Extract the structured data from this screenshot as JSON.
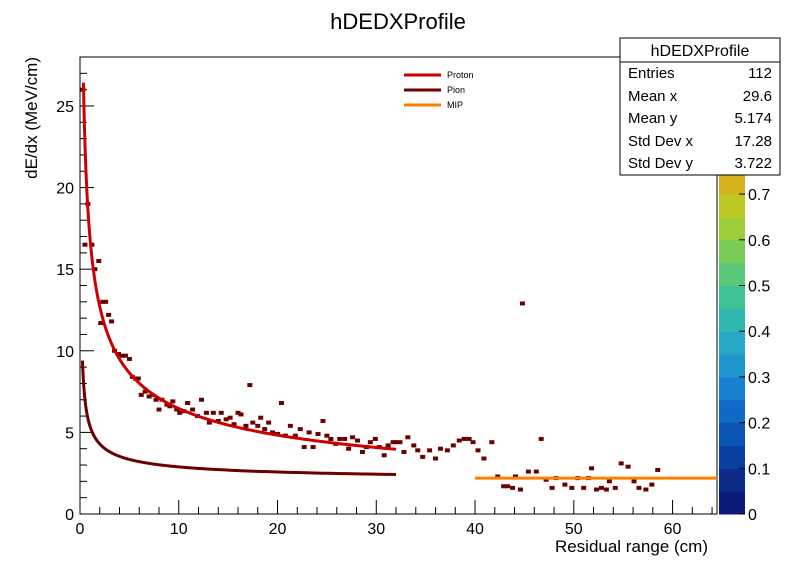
{
  "chart_data": {
    "type": "scatter",
    "title": "hDEDXProfile",
    "xlabel": "Residual range (cm)",
    "ylabel": "dE/dx (MeV/cm)",
    "xlim": [
      0,
      64.5
    ],
    "ylim": [
      0,
      28
    ],
    "x_ticks": [
      0,
      10,
      20,
      30,
      40,
      50,
      60
    ],
    "y_ticks": [
      0,
      5,
      10,
      15,
      20,
      25
    ],
    "legend": {
      "position": "top-center",
      "entries": [
        {
          "label": "Proton",
          "color": "#cc0000"
        },
        {
          "label": "Pion",
          "color": "#6b0000"
        },
        {
          "label": "MIP",
          "color": "#ff7f00"
        }
      ]
    },
    "stats_box": {
      "title": "hDEDXProfile",
      "rows": [
        {
          "label": "Entries",
          "value": "112"
        },
        {
          "label": "Mean x",
          "value": "29.6"
        },
        {
          "label": "Mean y",
          "value": "5.174"
        },
        {
          "label": "Std Dev x",
          "value": "17.28"
        },
        {
          "label": "Std Dev y",
          "value": "3.722"
        }
      ]
    },
    "colorbar": {
      "min": 0,
      "max": 1.0,
      "ticks": [
        "0",
        "0.1",
        "0.2",
        "0.3",
        "0.4",
        "0.5",
        "0.6",
        "0.7"
      ],
      "partial_ticks": [
        "8",
        "9"
      ]
    },
    "curves": [
      {
        "name": "Proton",
        "color": "#cc0000",
        "xrange": [
          0.35,
          32
        ],
        "formula": "17*x^-0.42"
      },
      {
        "name": "Pion",
        "color": "#6b0000",
        "xrange": [
          0.25,
          32
        ],
        "formula": "1.9 + 3.5*x^-0.55"
      },
      {
        "name": "MIP",
        "color": "#ff7f00",
        "x": [
          40,
          64.5
        ],
        "y": 2.2
      }
    ],
    "points": [
      [
        0.3,
        26.0
      ],
      [
        0.5,
        16.5
      ],
      [
        0.8,
        19.0
      ],
      [
        1.2,
        16.5
      ],
      [
        1.5,
        15.0
      ],
      [
        1.9,
        15.5
      ],
      [
        2.1,
        11.7
      ],
      [
        2.3,
        13.0
      ],
      [
        2.6,
        13.0
      ],
      [
        2.9,
        12.2
      ],
      [
        3.2,
        11.8
      ],
      [
        3.5,
        10.0
      ],
      [
        3.9,
        9.8
      ],
      [
        4.2,
        9.7
      ],
      [
        4.6,
        9.7
      ],
      [
        5.0,
        9.5
      ],
      [
        5.3,
        8.4
      ],
      [
        5.6,
        8.3
      ],
      [
        5.9,
        8.3
      ],
      [
        6.2,
        7.3
      ],
      [
        6.6,
        7.5
      ],
      [
        7.0,
        7.2
      ],
      [
        7.3,
        7.3
      ],
      [
        7.7,
        7.0
      ],
      [
        8.0,
        6.4
      ],
      [
        8.3,
        7.0
      ],
      [
        8.8,
        6.7
      ],
      [
        9.1,
        6.6
      ],
      [
        9.4,
        6.9
      ],
      [
        9.8,
        6.4
      ],
      [
        10.1,
        6.2
      ],
      [
        10.5,
        6.3
      ],
      [
        10.9,
        6.8
      ],
      [
        11.4,
        6.4
      ],
      [
        11.9,
        6.0
      ],
      [
        12.3,
        7.0
      ],
      [
        12.8,
        6.2
      ],
      [
        13.1,
        5.6
      ],
      [
        13.5,
        6.2
      ],
      [
        14.0,
        5.7
      ],
      [
        14.3,
        6.2
      ],
      [
        14.8,
        5.8
      ],
      [
        15.2,
        5.9
      ],
      [
        15.6,
        5.5
      ],
      [
        16.0,
        6.2
      ],
      [
        16.3,
        6.1
      ],
      [
        16.8,
        5.4
      ],
      [
        17.2,
        7.9
      ],
      [
        17.5,
        5.6
      ],
      [
        18.0,
        5.4
      ],
      [
        18.3,
        5.9
      ],
      [
        18.7,
        5.2
      ],
      [
        19.1,
        5.6
      ],
      [
        19.5,
        5.0
      ],
      [
        20.0,
        4.9
      ],
      [
        20.4,
        6.8
      ],
      [
        20.8,
        4.8
      ],
      [
        21.3,
        5.4
      ],
      [
        21.8,
        4.8
      ],
      [
        22.3,
        5.2
      ],
      [
        22.7,
        4.1
      ],
      [
        23.2,
        5.0
      ],
      [
        23.6,
        4.1
      ],
      [
        24.1,
        4.9
      ],
      [
        24.6,
        5.7
      ],
      [
        25.0,
        4.8
      ],
      [
        25.4,
        4.6
      ],
      [
        25.9,
        4.3
      ],
      [
        26.3,
        4.6
      ],
      [
        26.8,
        4.6
      ],
      [
        27.2,
        4.0
      ],
      [
        27.6,
        4.7
      ],
      [
        28.1,
        4.5
      ],
      [
        28.6,
        3.8
      ],
      [
        29.0,
        4.1
      ],
      [
        29.4,
        4.4
      ],
      [
        29.9,
        4.6
      ],
      [
        30.3,
        4.1
      ],
      [
        30.8,
        3.6
      ],
      [
        31.2,
        4.2
      ],
      [
        31.7,
        4.4
      ],
      [
        32.0,
        4.4
      ],
      [
        32.4,
        4.4
      ],
      [
        32.8,
        3.8
      ],
      [
        33.2,
        4.7
      ],
      [
        33.8,
        4.2
      ],
      [
        34.2,
        3.9
      ],
      [
        34.7,
        3.5
      ],
      [
        35.4,
        3.9
      ],
      [
        36.0,
        3.4
      ],
      [
        36.5,
        4.0
      ],
      [
        37.2,
        3.9
      ],
      [
        37.8,
        4.2
      ],
      [
        38.4,
        4.5
      ],
      [
        38.9,
        4.6
      ],
      [
        39.4,
        4.6
      ],
      [
        39.8,
        4.4
      ],
      [
        40.3,
        3.9
      ],
      [
        40.9,
        3.4
      ],
      [
        41.7,
        4.4
      ],
      [
        42.3,
        2.3
      ],
      [
        42.9,
        1.7
      ],
      [
        43.3,
        1.7
      ],
      [
        43.8,
        1.6
      ],
      [
        44.1,
        2.3
      ],
      [
        44.8,
        12.9
      ],
      [
        45.4,
        2.6
      ],
      [
        46.2,
        2.6
      ],
      [
        46.7,
        4.6
      ],
      [
        47.2,
        2.1
      ]
    ]
  }
}
